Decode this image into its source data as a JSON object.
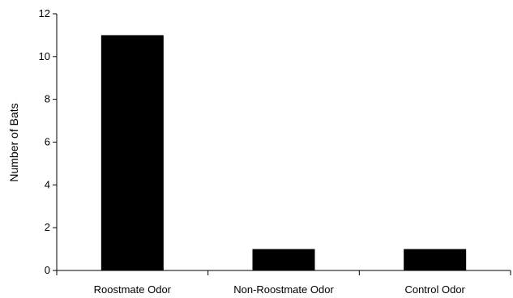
{
  "chart_data": {
    "type": "bar",
    "title": "",
    "xlabel": "",
    "ylabel": "Number of Bats",
    "ylim": [
      0,
      12
    ],
    "yticks": [
      0,
      2,
      4,
      6,
      8,
      10,
      12
    ],
    "categories": [
      "Roostmate Odor",
      "Non-Roostmate Odor",
      "Control Odor"
    ],
    "values": [
      11,
      1,
      1
    ],
    "bar_color": "#000000",
    "grid": false,
    "legend": "none"
  }
}
